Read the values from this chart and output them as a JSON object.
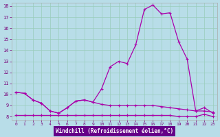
{
  "xlabel": "Windchill (Refroidissement éolien,°C)",
  "bg_color": "#b8dde8",
  "grid_color": "#99ccbb",
  "line_color": "#aa00aa",
  "xlabel_bg": "#7700aa",
  "xlabel_color": "#ffffff",
  "tick_color": "#770077",
  "xmin": 0,
  "xmax": 23,
  "ymin": 8,
  "ymax": 18,
  "yticks": [
    8,
    9,
    10,
    11,
    12,
    13,
    14,
    15,
    16,
    17,
    18
  ],
  "xticks": [
    0,
    1,
    2,
    3,
    4,
    5,
    6,
    7,
    8,
    9,
    10,
    11,
    12,
    13,
    14,
    15,
    16,
    17,
    18,
    19,
    20,
    21,
    22,
    23
  ],
  "line1_x": [
    0,
    1,
    2,
    3,
    4,
    5,
    6,
    7,
    8,
    9,
    10,
    11,
    12,
    13,
    14,
    15,
    16,
    17,
    18,
    19,
    20,
    21,
    22,
    23
  ],
  "line1_y": [
    10.2,
    10.1,
    9.5,
    9.2,
    8.5,
    8.3,
    8.8,
    9.4,
    9.5,
    9.3,
    10.5,
    12.5,
    13.0,
    12.8,
    14.5,
    17.7,
    18.1,
    17.3,
    17.4,
    14.8,
    13.2,
    8.5,
    8.8,
    8.3
  ],
  "line2_x": [
    0,
    1,
    2,
    3,
    4,
    5,
    6,
    7,
    8,
    9,
    10,
    11,
    12,
    13,
    14,
    15,
    16,
    17,
    18,
    19,
    20,
    21,
    22,
    23
  ],
  "line2_y": [
    10.2,
    10.1,
    9.5,
    9.2,
    8.5,
    8.3,
    8.8,
    9.4,
    9.5,
    9.3,
    9.1,
    9.0,
    9.0,
    9.0,
    9.0,
    9.0,
    9.0,
    8.9,
    8.8,
    8.7,
    8.6,
    8.5,
    8.5,
    8.4
  ],
  "line3_x": [
    0,
    1,
    2,
    3,
    4,
    5,
    6,
    7,
    8,
    9,
    10,
    11,
    12,
    13,
    14,
    15,
    16,
    17,
    18,
    19,
    20,
    21,
    22,
    23
  ],
  "line3_y": [
    8.1,
    8.1,
    8.1,
    8.1,
    8.1,
    8.1,
    8.1,
    8.1,
    8.1,
    8.1,
    8.1,
    8.1,
    8.1,
    8.1,
    8.1,
    8.1,
    8.1,
    8.1,
    8.1,
    8.0,
    8.0,
    8.0,
    8.2,
    8.0
  ]
}
